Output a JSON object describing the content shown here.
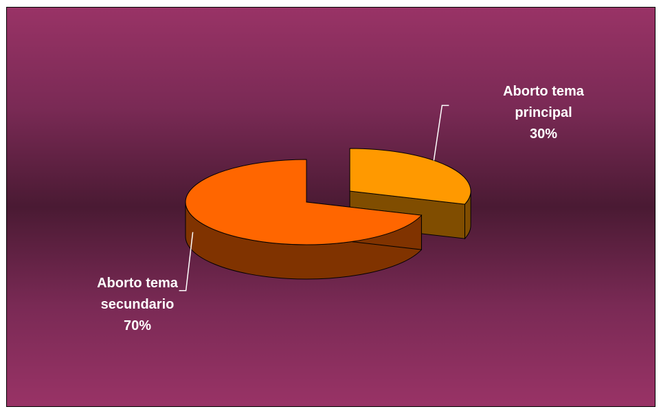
{
  "chart_data": {
    "type": "pie",
    "title": "",
    "style": "3d-exploded",
    "slices": [
      {
        "label": "Aborto tema principal",
        "label_lines": [
          "Aborto tema",
          "principal"
        ],
        "value": 30,
        "value_label": "30%",
        "top_color": "#FF9900",
        "side_color": "#804D00"
      },
      {
        "label": "Aborto tema secundario",
        "label_lines": [
          "Aborto tema",
          "secundario"
        ],
        "value": 70,
        "value_label": "70%",
        "top_color": "#FF6600",
        "side_color": "#803300"
      }
    ],
    "background_colors": [
      "#993366",
      "#4a1a33"
    ]
  }
}
